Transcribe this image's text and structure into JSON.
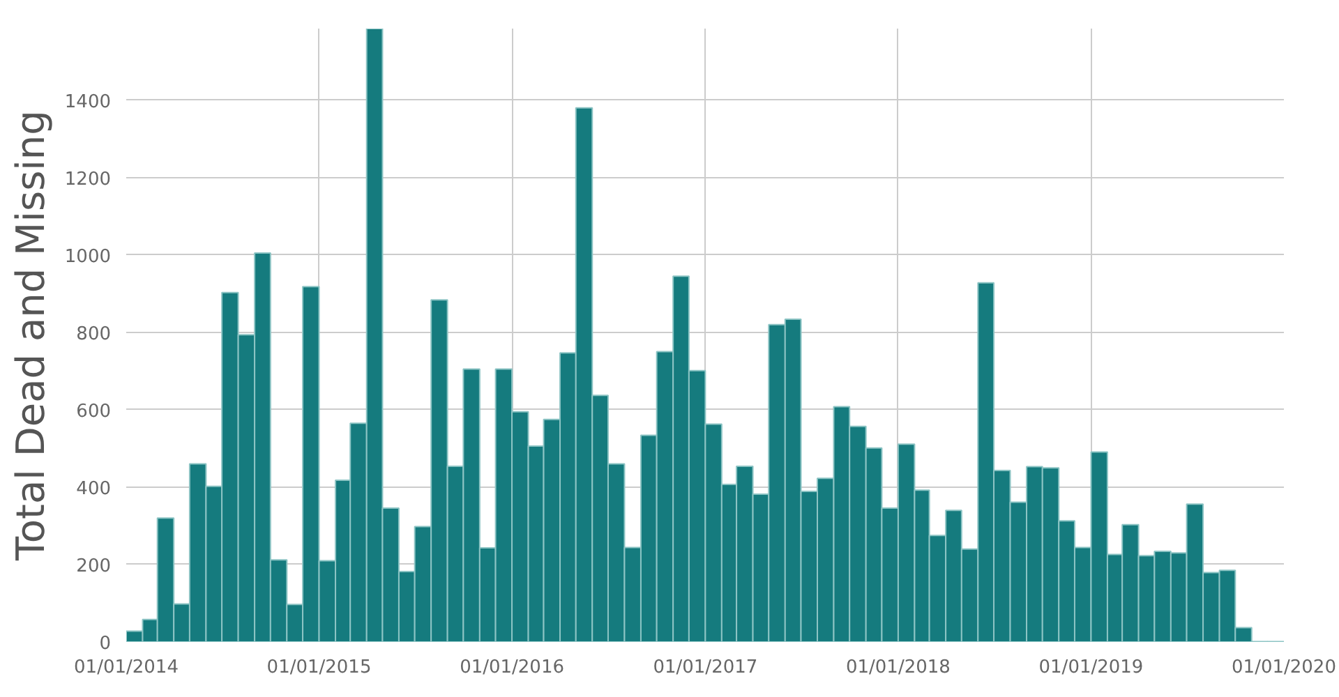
{
  "chart_data": {
    "type": "bar",
    "ylabel": "Total Dead and Missing",
    "x": [
      "2014-01-16",
      "2014-02-15",
      "2014-03-16",
      "2014-04-16",
      "2014-05-16",
      "2014-06-16",
      "2014-07-16",
      "2014-08-16",
      "2014-09-16",
      "2014-10-16",
      "2014-11-16",
      "2014-12-16",
      "2015-01-16",
      "2015-02-15",
      "2015-03-16",
      "2015-04-16",
      "2015-05-16",
      "2015-06-16",
      "2015-07-16",
      "2015-08-16",
      "2015-09-16",
      "2015-10-16",
      "2015-11-16",
      "2015-12-16",
      "2016-01-16",
      "2016-02-15",
      "2016-03-16",
      "2016-04-16",
      "2016-05-16",
      "2016-06-16",
      "2016-07-16",
      "2016-08-16",
      "2016-09-16",
      "2016-10-16",
      "2016-11-16",
      "2016-12-16",
      "2017-01-16",
      "2017-02-15",
      "2017-03-16",
      "2017-04-16",
      "2017-05-16",
      "2017-06-16",
      "2017-07-16",
      "2017-08-16",
      "2017-09-16",
      "2017-10-16",
      "2017-11-16",
      "2017-12-16",
      "2018-01-16",
      "2018-02-15",
      "2018-03-16",
      "2018-04-16",
      "2018-05-16",
      "2018-06-16",
      "2018-07-16",
      "2018-08-16",
      "2018-09-16",
      "2018-10-16",
      "2018-11-16",
      "2018-12-16",
      "2019-01-16",
      "2019-02-15",
      "2019-03-16",
      "2019-04-16",
      "2019-05-16",
      "2019-06-16",
      "2019-07-16",
      "2019-08-16",
      "2019-09-16",
      "2019-10-16",
      "2019-11-16",
      "2019-12-16"
    ],
    "values": [
      28,
      58,
      320,
      98,
      460,
      402,
      903,
      794,
      1005,
      212,
      97,
      918,
      210,
      418,
      565,
      1585,
      346,
      182,
      298,
      884,
      454,
      705,
      243,
      705,
      595,
      506,
      575,
      747,
      1380,
      637,
      460,
      244,
      534,
      750,
      945,
      701,
      563,
      407,
      454,
      382,
      820,
      834,
      389,
      423,
      608,
      557,
      501,
      346,
      511,
      392,
      275,
      340,
      240,
      928,
      443,
      361,
      453,
      450,
      313,
      244,
      491,
      226,
      303,
      223,
      234,
      230,
      356,
      179,
      185,
      37,
      1,
      1
    ],
    "color": "#157b7e",
    "xlim": [
      "2014-01-01",
      "2020-01-01"
    ],
    "xticks": [
      {
        "value": "2014-01-01",
        "label": "01/01/2014"
      },
      {
        "value": "2015-01-01",
        "label": "01/01/2015"
      },
      {
        "value": "2016-01-01",
        "label": "01/01/2016"
      },
      {
        "value": "2017-01-01",
        "label": "01/01/2017"
      },
      {
        "value": "2018-01-01",
        "label": "01/01/2018"
      },
      {
        "value": "2019-01-01",
        "label": "01/01/2019"
      },
      {
        "value": "2020-01-01",
        "label": "01/01/2020"
      }
    ],
    "ylim": [
      0,
      1585
    ],
    "yticks": [
      0,
      200,
      400,
      600,
      800,
      1000,
      1200,
      1400
    ],
    "grid": true
  }
}
